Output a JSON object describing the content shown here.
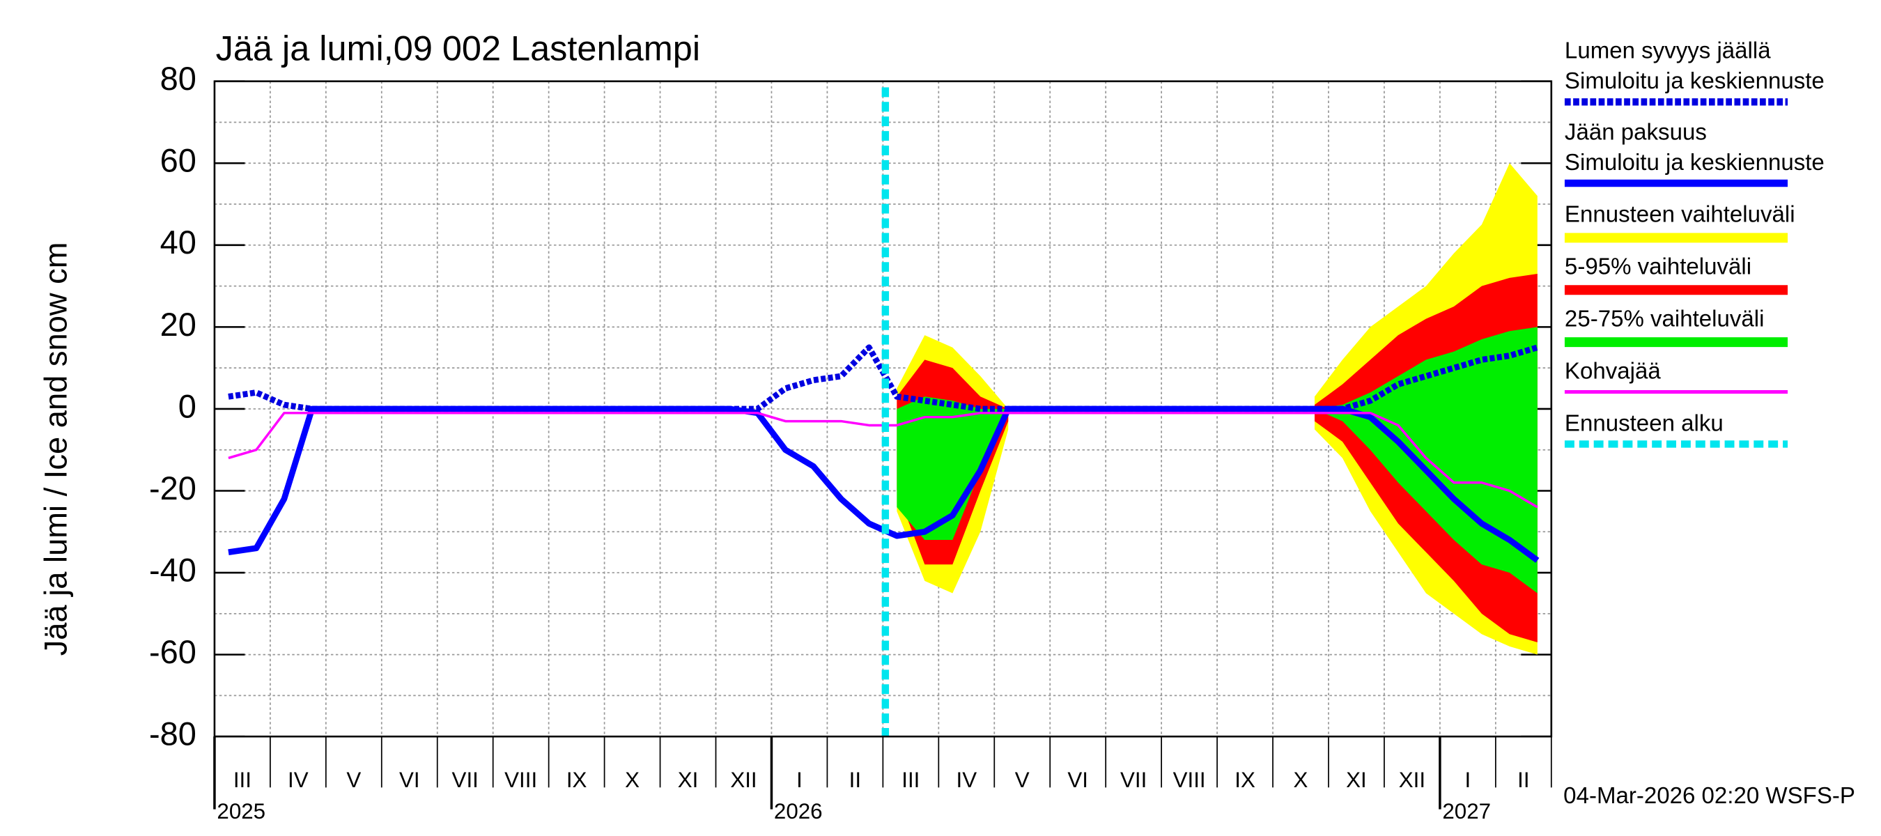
{
  "chart_data": {
    "type": "line",
    "title": "Jää ja lumi,09 002 Lastenlampi",
    "y_label": "Jää ja lumi / Ice and snow    cm",
    "footer": "04-Mar-2026 02:20 WSFS-P",
    "categories": [
      "III",
      null,
      "IV",
      null,
      "V",
      null,
      "VI",
      null,
      "VII",
      null,
      "VIII",
      null,
      "IX",
      null,
      "X",
      null,
      "XI",
      null,
      "XII",
      null,
      "I",
      null,
      "II",
      null,
      "III",
      null,
      "IV",
      null,
      "V",
      null,
      "VI",
      null,
      "VII",
      null,
      "VIII",
      null,
      "IX",
      null,
      "X",
      null,
      "XI",
      null,
      "XII",
      null,
      "I",
      null,
      "II",
      null
    ],
    "years": [
      "2025",
      null,
      null,
      null,
      null,
      null,
      null,
      null,
      null,
      null,
      null,
      null,
      null,
      null,
      null,
      null,
      null,
      null,
      null,
      null,
      "2026",
      null,
      null,
      null,
      null,
      null,
      null,
      null,
      null,
      null,
      null,
      null,
      null,
      null,
      null,
      null,
      null,
      null,
      null,
      null,
      null,
      null,
      null,
      null,
      "2027",
      null,
      null,
      null
    ],
    "ylim": [
      -80,
      80
    ],
    "yticks": [
      -80,
      -60,
      -40,
      -20,
      0,
      20,
      40,
      60,
      80
    ],
    "ygrid": [
      -70,
      -50,
      -30,
      -10,
      10,
      30,
      50,
      70
    ],
    "grid": true,
    "bands": [
      {
        "name": "Ennusteen vaihteluväli",
        "color": "#ffff00",
        "high": [
          null,
          null,
          null,
          null,
          null,
          null,
          null,
          null,
          null,
          null,
          null,
          null,
          null,
          null,
          null,
          null,
          null,
          null,
          null,
          null,
          null,
          null,
          null,
          null,
          5,
          18,
          15,
          8,
          0,
          null,
          null,
          null,
          null,
          null,
          null,
          null,
          null,
          null,
          null,
          3,
          12,
          20,
          25,
          30,
          38,
          45,
          60,
          52
        ],
        "low": [
          null,
          null,
          null,
          null,
          null,
          null,
          null,
          null,
          null,
          null,
          null,
          null,
          null,
          null,
          null,
          null,
          null,
          null,
          null,
          null,
          null,
          null,
          null,
          null,
          -25,
          -42,
          -45,
          -30,
          -5,
          null,
          null,
          null,
          null,
          null,
          null,
          null,
          null,
          null,
          null,
          -5,
          -12,
          -25,
          -35,
          -45,
          -50,
          -55,
          -58,
          -60
        ]
      },
      {
        "name": "5-95% vaihteluväli",
        "color": "#ff0000",
        "high": [
          null,
          null,
          null,
          null,
          null,
          null,
          null,
          null,
          null,
          null,
          null,
          null,
          null,
          null,
          null,
          null,
          null,
          null,
          null,
          null,
          null,
          null,
          null,
          null,
          3,
          12,
          10,
          3,
          0,
          null,
          null,
          null,
          null,
          null,
          null,
          null,
          null,
          null,
          null,
          1,
          6,
          12,
          18,
          22,
          25,
          30,
          32,
          33
        ],
        "low": [
          null,
          null,
          null,
          null,
          null,
          null,
          null,
          null,
          null,
          null,
          null,
          null,
          null,
          null,
          null,
          null,
          null,
          null,
          null,
          null,
          null,
          null,
          null,
          null,
          -20,
          -38,
          -38,
          -20,
          -3,
          null,
          null,
          null,
          null,
          null,
          null,
          null,
          null,
          null,
          null,
          -3,
          -8,
          -18,
          -28,
          -35,
          -42,
          -50,
          -55,
          -57
        ]
      },
      {
        "name": "25-75% vaihteluväli",
        "color": "#00ee00",
        "high": [
          null,
          null,
          null,
          null,
          null,
          null,
          null,
          null,
          null,
          null,
          null,
          null,
          null,
          null,
          null,
          null,
          null,
          null,
          null,
          null,
          null,
          null,
          null,
          null,
          0,
          3,
          2,
          0,
          0,
          null,
          null,
          null,
          null,
          null,
          null,
          null,
          null,
          null,
          null,
          0,
          1,
          4,
          8,
          12,
          14,
          17,
          19,
          20
        ],
        "low": [
          null,
          null,
          null,
          null,
          null,
          null,
          null,
          null,
          null,
          null,
          null,
          null,
          null,
          null,
          null,
          null,
          null,
          null,
          null,
          null,
          null,
          null,
          null,
          null,
          -24,
          -32,
          -32,
          -15,
          0,
          null,
          null,
          null,
          null,
          null,
          null,
          null,
          null,
          null,
          null,
          0,
          -3,
          -10,
          -18,
          -25,
          -32,
          -38,
          -40,
          -45
        ]
      }
    ],
    "series": [
      {
        "name": "Lumen syvyys jäällä",
        "note": "Simuloitu ja keskiennuste",
        "color": "#0000e0",
        "dash": true,
        "values": [
          3,
          4,
          1,
          0,
          0,
          0,
          0,
          0,
          0,
          0,
          0,
          0,
          0,
          0,
          0,
          0,
          0,
          0,
          0,
          0,
          5,
          7,
          8,
          15,
          3,
          2,
          1,
          0,
          0,
          0,
          0,
          0,
          0,
          0,
          0,
          0,
          0,
          0,
          0,
          0,
          0,
          2,
          6,
          8,
          10,
          12,
          13,
          15
        ]
      },
      {
        "name": "Jään paksuus",
        "note": "Simuloitu ja keskiennuste",
        "color": "#0000ff",
        "dash": false,
        "values": [
          -35,
          -34,
          -22,
          0,
          0,
          0,
          0,
          0,
          0,
          0,
          0,
          0,
          0,
          0,
          0,
          0,
          0,
          0,
          0,
          -1,
          -10,
          -14,
          -22,
          -28,
          -31,
          -30,
          -26,
          -15,
          0,
          0,
          0,
          0,
          0,
          0,
          0,
          0,
          0,
          0,
          0,
          0,
          0,
          -2,
          -8,
          -15,
          -22,
          -28,
          -32,
          -37
        ]
      },
      {
        "name": "Kohvajää",
        "color": "#ff00ff",
        "dash": false,
        "values": [
          -12,
          -10,
          -1,
          -1,
          -1,
          -1,
          -1,
          -1,
          -1,
          -1,
          -1,
          -1,
          -1,
          -1,
          -1,
          -1,
          -1,
          -1,
          -1,
          -1,
          -3,
          -3,
          -3,
          -4,
          -4,
          -2,
          -2,
          -1,
          -1,
          -1,
          -1,
          -1,
          -1,
          -1,
          -1,
          -1,
          -1,
          -1,
          -1,
          -1,
          -1,
          -1,
          -4,
          -12,
          -18,
          -18,
          -20,
          -24
        ]
      }
    ],
    "forecast_start": {
      "name": "Ennusteen alku",
      "color": "#00e5ee"
    }
  }
}
